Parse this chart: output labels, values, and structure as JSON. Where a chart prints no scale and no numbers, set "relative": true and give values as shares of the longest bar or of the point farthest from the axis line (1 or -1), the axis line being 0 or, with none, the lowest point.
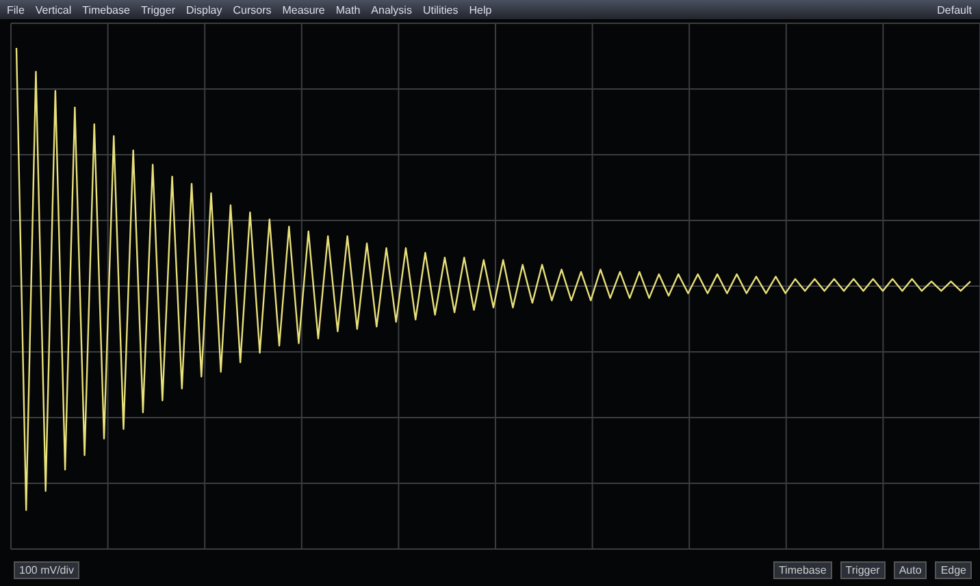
{
  "chart_data": {
    "type": "line",
    "relative": true,
    "grid": true,
    "tick_labels": false,
    "categories": [
      null,
      null,
      null,
      null,
      null,
      null,
      null,
      null,
      null,
      null,
      null,
      null,
      null,
      null,
      null,
      null,
      null,
      null,
      null,
      null,
      null,
      null,
      null,
      null,
      null,
      null,
      null,
      null,
      null,
      null,
      null,
      null,
      null,
      null,
      null,
      null,
      null,
      null,
      null,
      null,
      null,
      null,
      null,
      null,
      null,
      null,
      null,
      null,
      null,
      null,
      null,
      null,
      null,
      null,
      null,
      null,
      null,
      null,
      null,
      null,
      null,
      null,
      null,
      null,
      null,
      null,
      null,
      null,
      null,
      null,
      null,
      null,
      null,
      null,
      null,
      null,
      null,
      null,
      null,
      null,
      null,
      null,
      null,
      null,
      null,
      null,
      null,
      null,
      null,
      null,
      null,
      null,
      null,
      null,
      null,
      null,
      null,
      null,
      null
    ],
    "series": [
      {
        "color": "#e8e07a",
        "values": [
          1,
          -0.94,
          0.9,
          -0.86,
          0.82,
          -0.77,
          0.75,
          -0.71,
          0.68,
          -0.64,
          0.63,
          -0.6,
          0.57,
          -0.53,
          0.51,
          -0.48,
          0.46,
          -0.43,
          0.43,
          -0.38,
          0.39,
          -0.36,
          0.34,
          -0.32,
          0.31,
          -0.28,
          0.28,
          -0.25,
          0.25,
          -0.24,
          0.23,
          -0.22,
          0.21,
          -0.19,
          0.21,
          -0.18,
          0.18,
          -0.17,
          0.16,
          -0.15,
          0.16,
          -0.14,
          0.14,
          -0.12,
          0.12,
          -0.11,
          0.12,
          -0.1,
          0.11,
          -0.09,
          0.11,
          -0.09,
          0.09,
          -0.07,
          0.09,
          -0.06,
          0.07,
          -0.06,
          0.06,
          -0.06,
          0.07,
          -0.05,
          0.06,
          -0.05,
          0.06,
          -0.05,
          0.05,
          -0.04,
          0.05,
          -0.03,
          0.05,
          -0.03,
          0.05,
          -0.03,
          0.05,
          -0.03,
          0.04,
          -0.03,
          0.04,
          -0.03,
          0.03,
          -0.02,
          0.03,
          -0.02,
          0.03,
          -0.02,
          0.03,
          -0.02,
          0.03,
          -0.02,
          0.03,
          -0.02,
          0.03,
          -0.02,
          0.02,
          -0.02,
          0.02,
          -0.02,
          0.02
        ]
      }
    ],
    "annotations": [
      "File",
      "Vertical",
      "Timebase",
      "Trigger",
      "Display",
      "Cursors",
      "Measure",
      "Math",
      "Analysis",
      "Utilities",
      "Help",
      "Default",
      "100 mV/div",
      "Timebase",
      "Trigger",
      "Auto",
      "Edge"
    ]
  }
}
